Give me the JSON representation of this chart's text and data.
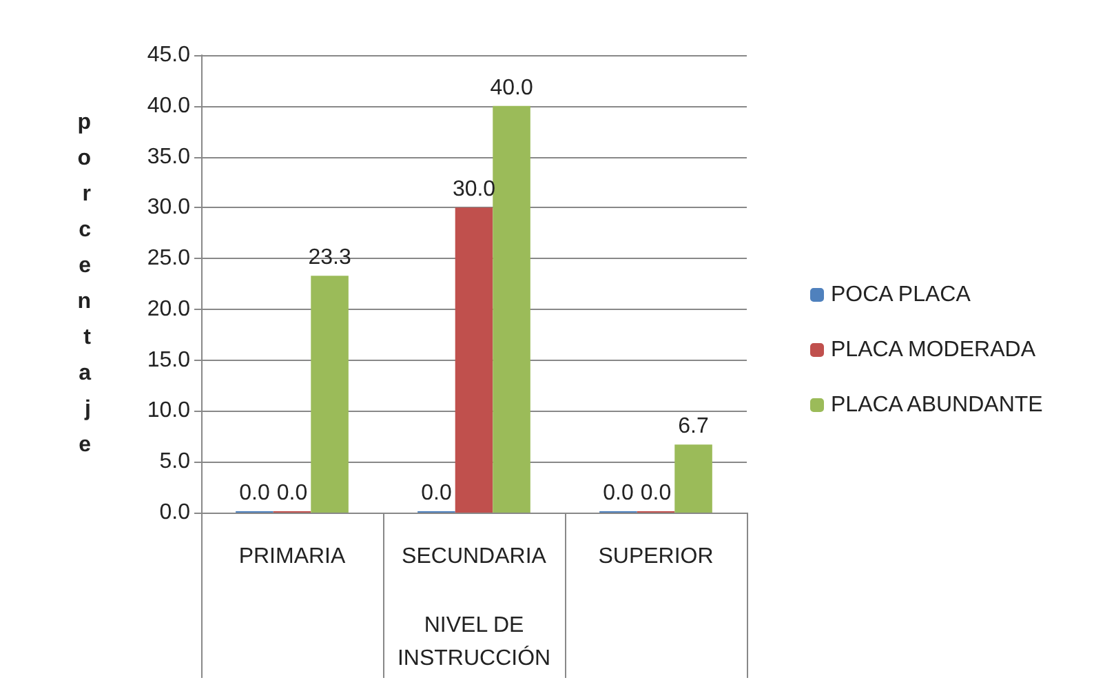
{
  "chart_data": {
    "type": "bar",
    "categories": [
      "PRIMARIA",
      "SECUNDARIA",
      "SUPERIOR"
    ],
    "xlabel": "NIVEL DE INSTRUCCIÓN",
    "ylabel": "porcentaje",
    "series": [
      {
        "name": "POCA PLACA",
        "color": "#4f81bd",
        "values": [
          0,
          0,
          0
        ],
        "value_labels": [
          "0.0",
          "0.0",
          "0.0"
        ]
      },
      {
        "name": "PLACA MODERADA",
        "color": "#c0504d",
        "values": [
          0,
          30,
          0
        ],
        "value_labels": [
          "0.0",
          "30.0",
          "0.0"
        ]
      },
      {
        "name": "PLACA ABUNDANTE",
        "color": "#9bbb59",
        "values": [
          23.3,
          40,
          6.7
        ],
        "value_labels": [
          "23.3",
          "40.0",
          "6.7"
        ]
      }
    ],
    "ylim": [
      0,
      45
    ],
    "yticks": [
      {
        "value": 0,
        "label": "0.0"
      },
      {
        "value": 5,
        "label": "5.0"
      },
      {
        "value": 10,
        "label": "10.0"
      },
      {
        "value": 15,
        "label": "15.0"
      },
      {
        "value": 20,
        "label": "20.0"
      },
      {
        "value": 25,
        "label": "25.0"
      },
      {
        "value": 30,
        "label": "30.0"
      },
      {
        "value": 35,
        "label": "35.0"
      },
      {
        "value": 40,
        "label": "40.0"
      },
      {
        "value": 45,
        "label": "45.0"
      }
    ],
    "grid": "y",
    "legend": "right"
  }
}
